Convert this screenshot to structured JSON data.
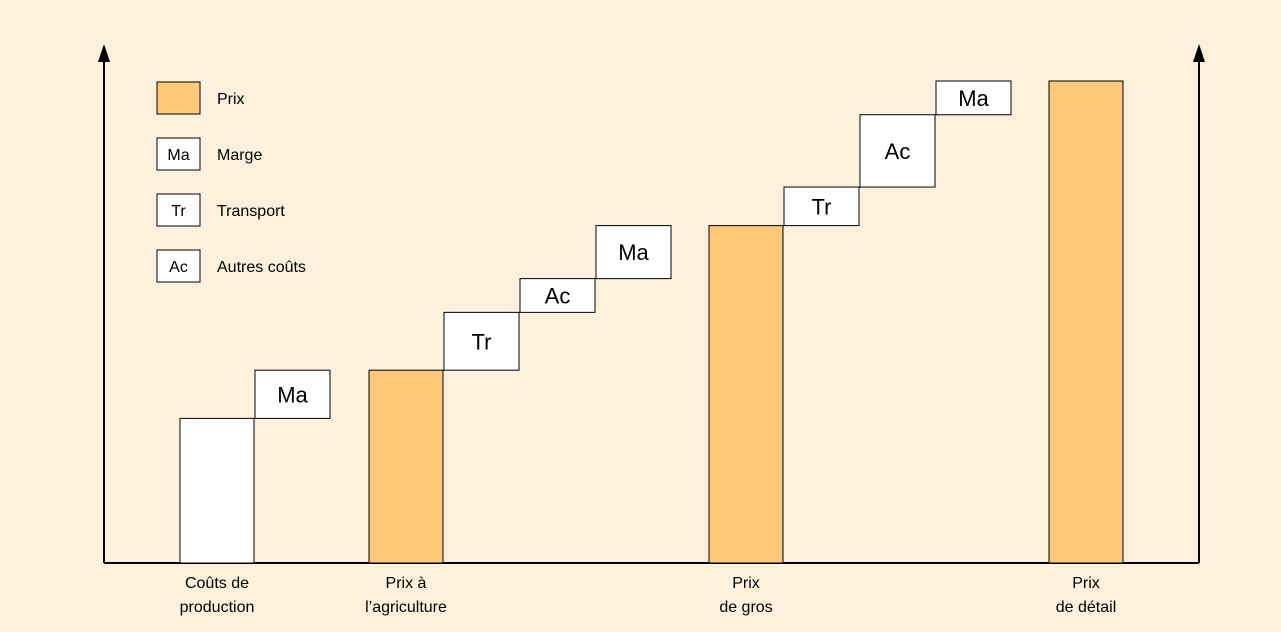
{
  "colors": {
    "background": "#fdf0dc",
    "price_bar": "#ffc97a",
    "cost_bar": "#ffffff",
    "step_box": "#ffffff",
    "axis": "#000000"
  },
  "legend": {
    "items": [
      {
        "abbr": "",
        "label": "Prix",
        "fill": "#ffc97a"
      },
      {
        "abbr": "Ma",
        "label": "Marge",
        "fill": "#ffffff"
      },
      {
        "abbr": "Tr",
        "label": "Transport",
        "fill": "#ffffff"
      },
      {
        "abbr": "Ac",
        "label": "Autres coûts",
        "fill": "#ffffff"
      }
    ]
  },
  "chart_data": {
    "type": "bar",
    "title": "",
    "xlabel": "",
    "ylabel": "",
    "ylim": [
      0,
      100
    ],
    "axis_ticks": false,
    "legend_position": "top-left",
    "categories": [
      {
        "lines": [
          "Coûts de",
          "production"
        ],
        "value": 30,
        "kind": "cost"
      },
      {
        "lines": [
          "Prix à",
          "l’agriculture"
        ],
        "value": 40,
        "kind": "price"
      },
      {
        "lines": [
          "Prix",
          "de gros"
        ],
        "value": 70,
        "kind": "price"
      },
      {
        "lines": [
          "Prix",
          "de détail"
        ],
        "value": 100,
        "kind": "price"
      }
    ],
    "step_components": [
      {
        "label": "Ma",
        "from": 30,
        "to": 40,
        "after_category": 0
      },
      {
        "label": "Tr",
        "from": 40,
        "to": 52,
        "after_category": 1
      },
      {
        "label": "Ac",
        "from": 52,
        "to": 59,
        "after_category": 1
      },
      {
        "label": "Ma",
        "from": 59,
        "to": 70,
        "after_category": 1
      },
      {
        "label": "Tr",
        "from": 70,
        "to": 78,
        "after_category": 2
      },
      {
        "label": "Ac",
        "from": 78,
        "to": 93,
        "after_category": 2
      },
      {
        "label": "Ma",
        "from": 93,
        "to": 100,
        "after_category": 2
      }
    ]
  }
}
